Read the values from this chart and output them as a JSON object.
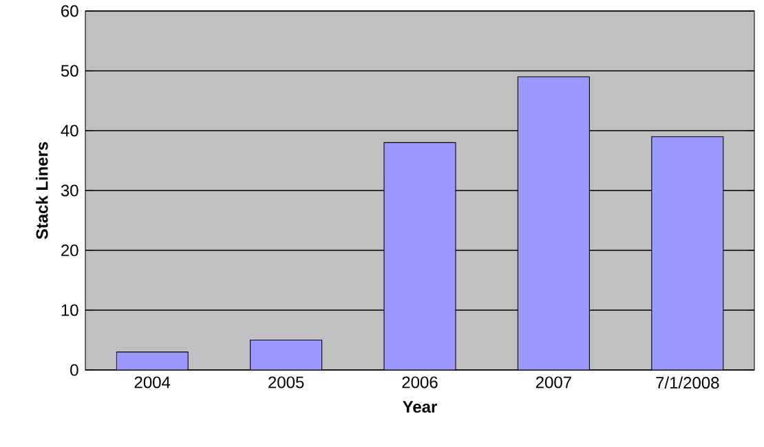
{
  "chart_data": {
    "type": "bar",
    "xlabel": "Year",
    "ylabel": "Stack Liners",
    "categories": [
      "2004",
      "2005",
      "2006",
      "2007",
      "7/1/2008"
    ],
    "values": [
      3,
      5,
      38,
      49,
      39
    ],
    "color": "#9999ff",
    "ylim": [
      0,
      60
    ],
    "yticks": [
      0,
      10,
      20,
      30,
      40,
      50,
      60
    ],
    "grid": "y"
  }
}
